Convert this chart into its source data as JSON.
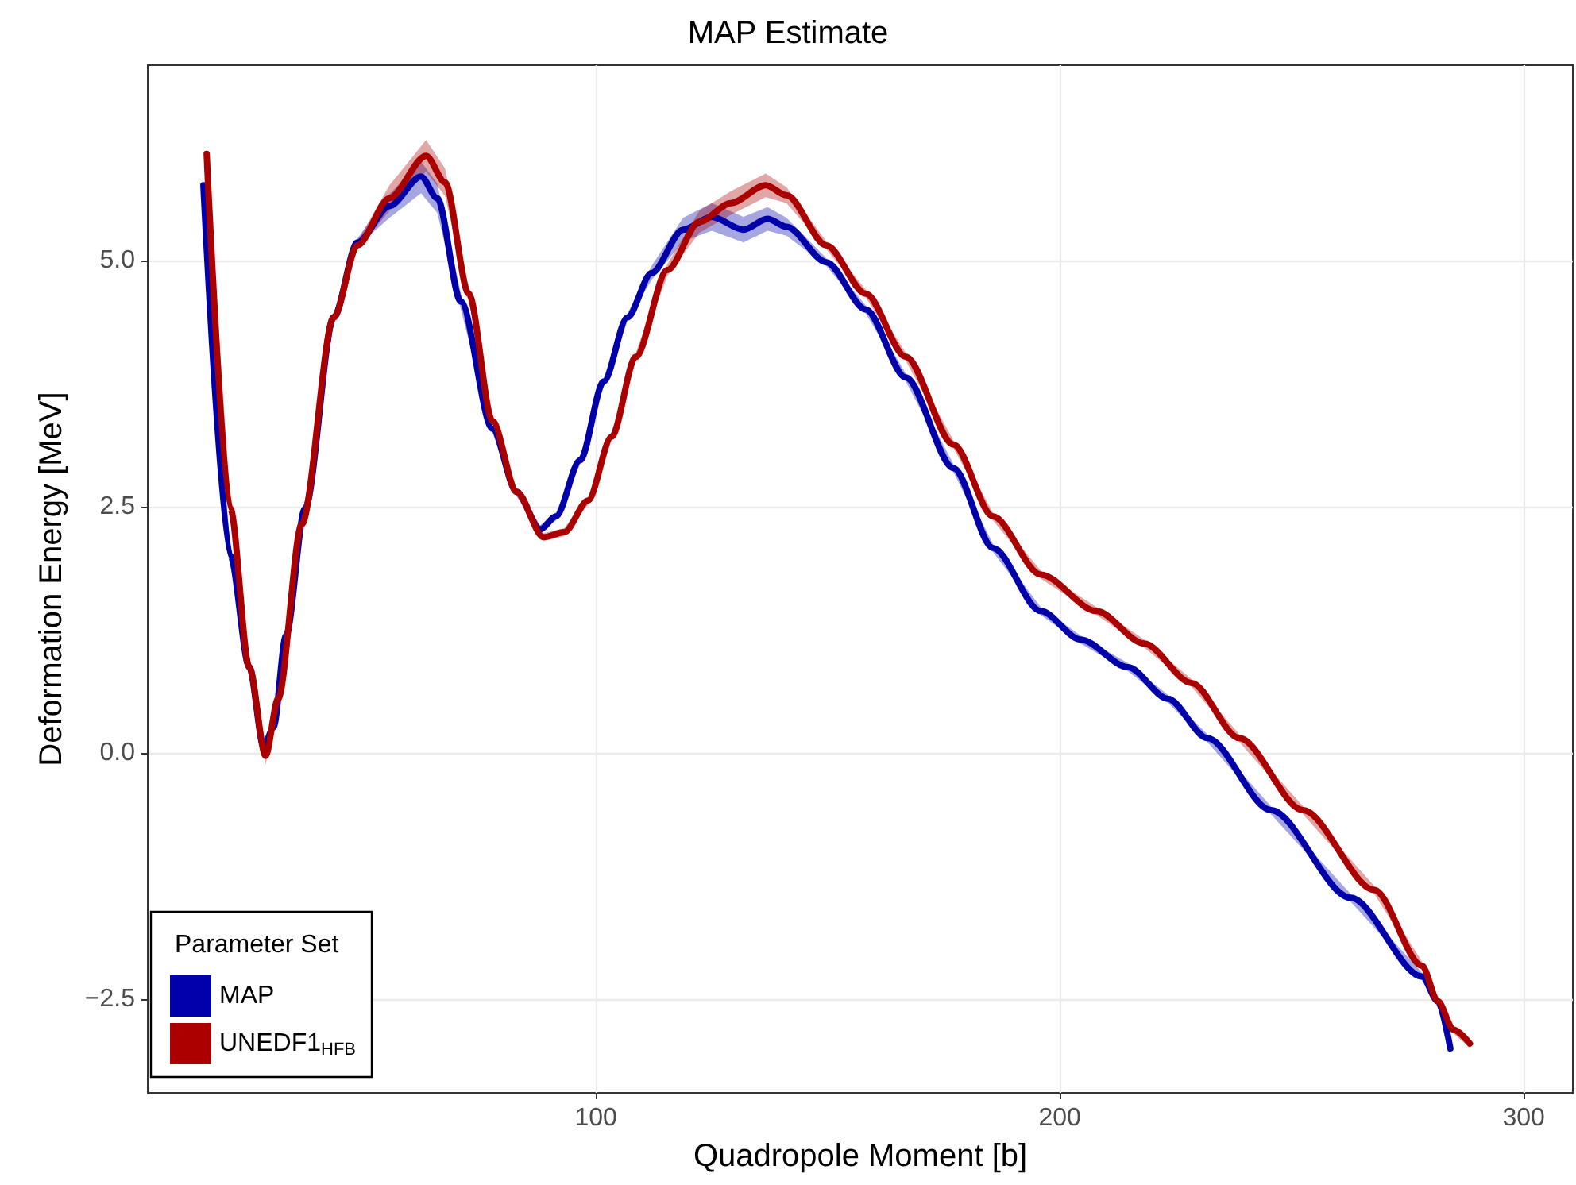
{
  "chart_data": {
    "type": "line",
    "title": "MAP Estimate",
    "xlabel": "Quadropole Moment [b]",
    "ylabel": "Deformation Energy [MeV]",
    "legend_title": "Parameter Set",
    "legend": "bottom left",
    "grid": true,
    "marker": "none",
    "line_style": "solid",
    "xlim": [
      3.4,
      310.6
    ],
    "xticks": [
      100,
      200,
      300
    ],
    "ylim": [
      -3.45,
      6.98
    ],
    "yticks": [
      {
        "value": -2.5,
        "label": "−2.5"
      },
      {
        "value": 0,
        "label": "0.0"
      },
      {
        "value": 2.5,
        "label": "2.5"
      },
      {
        "value": 5,
        "label": "5.0"
      }
    ],
    "series": [
      {
        "name": "MAP",
        "color": "#0000aa",
        "x": [
          15.4,
          21.2,
          25.3,
          28.4,
          30.5,
          33.2,
          37.3,
          43.5,
          48.6,
          55.5,
          62.3,
          65.8,
          70.9,
          77.7,
          82.9,
          88.0,
          91.4,
          96.6,
          101.7,
          106.8,
          112.0,
          118.8,
          125.0,
          131.8,
          137.0,
          141.1,
          149.7,
          158.2,
          166.8,
          177.1,
          185.6,
          195.9,
          204.5,
          214.7,
          223.3,
          231.8,
          245.5,
          262.7,
          278.1,
          281.5,
          284.2
        ],
        "values": [
          5.76,
          2.0,
          0.87,
          0.06,
          0.26,
          1.19,
          2.48,
          4.42,
          5.18,
          5.55,
          5.85,
          5.63,
          4.58,
          3.29,
          2.65,
          2.27,
          2.4,
          2.97,
          3.77,
          4.42,
          4.87,
          5.31,
          5.44,
          5.31,
          5.42,
          5.34,
          4.98,
          4.5,
          3.81,
          2.89,
          2.08,
          1.44,
          1.15,
          0.87,
          0.55,
          0.15,
          -0.58,
          -1.47,
          -2.27,
          -2.52,
          -3.0
        ],
        "lower": [
          5.72,
          1.96,
          0.83,
          0.0,
          0.2,
          1.14,
          2.44,
          4.38,
          5.14,
          5.43,
          5.68,
          5.48,
          4.5,
          3.25,
          2.61,
          2.23,
          2.36,
          2.93,
          3.73,
          4.38,
          4.8,
          5.19,
          5.3,
          5.18,
          5.3,
          5.25,
          4.94,
          4.46,
          3.77,
          2.85,
          2.04,
          1.4,
          1.11,
          0.83,
          0.51,
          0.11,
          -0.62,
          -1.51,
          -2.31,
          -2.56,
          -3.04
        ],
        "upper": [
          5.8,
          2.04,
          0.91,
          0.12,
          0.32,
          1.24,
          2.52,
          4.46,
          5.22,
          5.67,
          6.0,
          5.78,
          4.66,
          3.33,
          2.69,
          2.31,
          2.44,
          3.01,
          3.81,
          4.46,
          4.94,
          5.43,
          5.58,
          5.44,
          5.54,
          5.43,
          5.02,
          4.54,
          3.85,
          2.93,
          2.12,
          1.48,
          1.19,
          0.91,
          0.59,
          0.19,
          -0.54,
          -1.43,
          -2.23,
          -2.48,
          -2.96
        ]
      },
      {
        "name": "UNEDF1$_{HFB}$",
        "color": "#aa0000",
        "x": [
          16.1,
          21.2,
          25.3,
          28.8,
          31.5,
          36.6,
          43.5,
          48.6,
          55.5,
          63.4,
          67.5,
          72.6,
          77.7,
          82.9,
          88.7,
          93.2,
          98.3,
          103.4,
          108.6,
          115.4,
          122.3,
          129.1,
          136.6,
          141.1,
          149.7,
          158.2,
          166.8,
          177.1,
          185.6,
          195.9,
          207.9,
          218.2,
          228.4,
          238.7,
          252.4,
          267.8,
          278.1,
          281.5,
          284.9,
          288.4
        ],
        "values": [
          6.08,
          2.48,
          0.87,
          -0.03,
          0.55,
          2.32,
          4.42,
          5.15,
          5.63,
          6.06,
          5.79,
          4.66,
          3.37,
          2.65,
          2.19,
          2.24,
          2.56,
          3.21,
          4.02,
          4.9,
          5.39,
          5.58,
          5.76,
          5.66,
          5.15,
          4.66,
          4.02,
          3.13,
          2.4,
          1.81,
          1.44,
          1.11,
          0.71,
          0.15,
          -0.58,
          -1.39,
          -2.16,
          -2.52,
          -2.81,
          -2.95
        ],
        "lower": [
          6.04,
          2.44,
          0.83,
          -0.12,
          0.49,
          2.28,
          4.38,
          5.11,
          5.5,
          5.9,
          5.65,
          4.6,
          3.33,
          2.61,
          2.15,
          2.2,
          2.52,
          3.17,
          3.98,
          4.84,
          5.28,
          5.46,
          5.64,
          5.58,
          5.11,
          4.62,
          3.98,
          3.09,
          2.36,
          1.77,
          1.4,
          1.07,
          0.67,
          0.11,
          -0.62,
          -1.43,
          -2.2,
          -2.56,
          -2.85,
          -2.99
        ],
        "upper": [
          6.12,
          2.52,
          0.91,
          0.06,
          0.61,
          2.36,
          4.46,
          5.19,
          5.76,
          6.22,
          5.93,
          4.72,
          3.41,
          2.69,
          2.23,
          2.28,
          2.6,
          3.25,
          4.06,
          4.96,
          5.5,
          5.7,
          5.88,
          5.74,
          5.19,
          4.7,
          4.06,
          3.17,
          2.44,
          1.85,
          1.48,
          1.15,
          0.75,
          0.19,
          -0.54,
          -1.35,
          -2.12,
          -2.48,
          -2.77,
          -2.91
        ]
      }
    ]
  }
}
